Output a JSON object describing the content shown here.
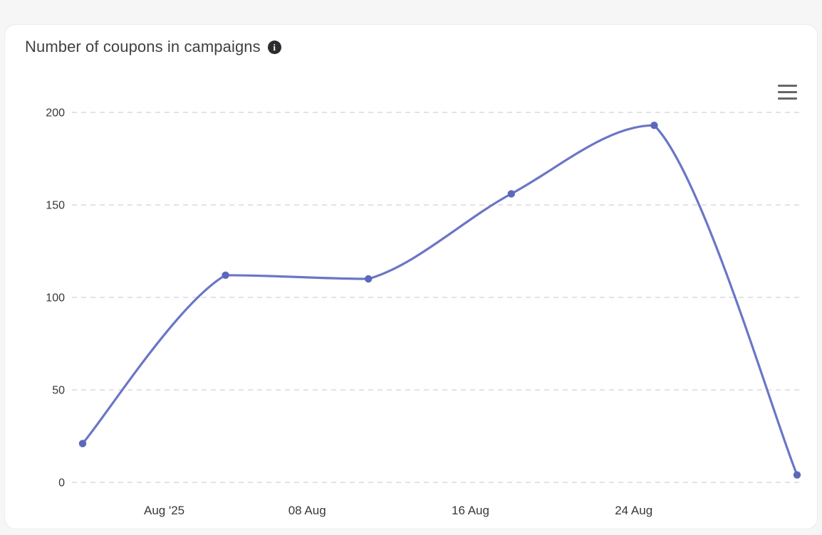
{
  "card": {
    "title": "Number of coupons in campaigns"
  },
  "icons": {
    "info_glyph": "i",
    "menu_icon": "hamburger-icon"
  },
  "colors": {
    "page_bg": "#f6f6f7",
    "card_bg": "#ffffff",
    "title_text": "#414146",
    "axis_text": "#37373c",
    "grid": "#dadade",
    "line": "#6a76c6",
    "marker": "#5c68ba"
  },
  "chart_data": {
    "type": "line",
    "curve": "spline",
    "markers": true,
    "title": "Number of coupons in campaigns",
    "x_days": [
      0,
      7,
      14,
      21,
      28,
      35
    ],
    "values": [
      21,
      112,
      110,
      156,
      193,
      4
    ],
    "xlim": [
      0,
      35
    ],
    "ylim": [
      0,
      200
    ],
    "yticks": [
      0,
      50,
      100,
      150,
      200
    ],
    "xticks": [
      {
        "pos": 4,
        "label": "Aug '25"
      },
      {
        "pos": 11,
        "label": "08 Aug"
      },
      {
        "pos": 19,
        "label": "16 Aug"
      },
      {
        "pos": 27,
        "label": "24 Aug"
      }
    ],
    "grid": "horizontal-dashed",
    "legend": "none"
  }
}
